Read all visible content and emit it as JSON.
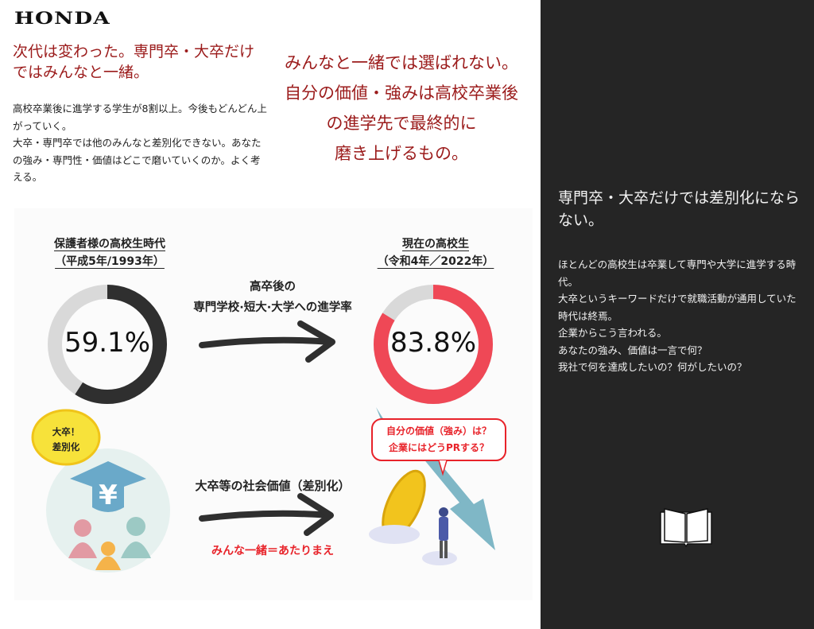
{
  "header": {
    "logo": "HONDA"
  },
  "left": {
    "headline": "次代は変わった。専門卒・大卒だけではみんなと一緒。",
    "body": "高校卒業後に進学する学生が8割以上。今後もどんどん上がっていく。\n大卒・専門卒では他のみんなと差別化できない。あなたの強み・専門性・価値はどこで磨いていくのか。よく考える。"
  },
  "center": {
    "headline": "みんなと一緒では選ばれない。\n自分の価値・強みは高校卒業後\nの進学先で最終的に\n磨き上げるもの。"
  },
  "infographic": {
    "past_label": "保護者様の高校生時代\n（平成5年/1993年）",
    "now_label": "現在の高校生\n（令和4年／2022年）",
    "rate_label": "高卒後の\n専門学校·短大·大学への進学率",
    "past_rate": 59.1,
    "past_rate_text": "59.1%",
    "now_rate": 83.8,
    "now_rate_text": "83.8%",
    "bubble_left": "大卒！\n差別化",
    "social_label": "大卒等の社会価値（差別化）",
    "same_label": "みんな一緒＝あたりまえ",
    "bubble_right": "自分の価値（強み）は？\n企業にはどうPRする？",
    "colors": {
      "past": "#2f2f2f",
      "now": "#ef4856",
      "track": "#d9d9d9",
      "accent_red": "#e8232a"
    }
  },
  "right": {
    "headline": "専門卒・大卒だけでは差別化にならない。",
    "body": "ほとんどの高校生は卒業して専門や大学に進学する時代。\n大卒というキーワードだけで就職活動が通用していた時代は終焉。\n企業からこう言われる。\nあなたの強み、価値は一言で何？\n我社で何を達成したいの？何がしたいの？",
    "icon": "book-icon"
  }
}
